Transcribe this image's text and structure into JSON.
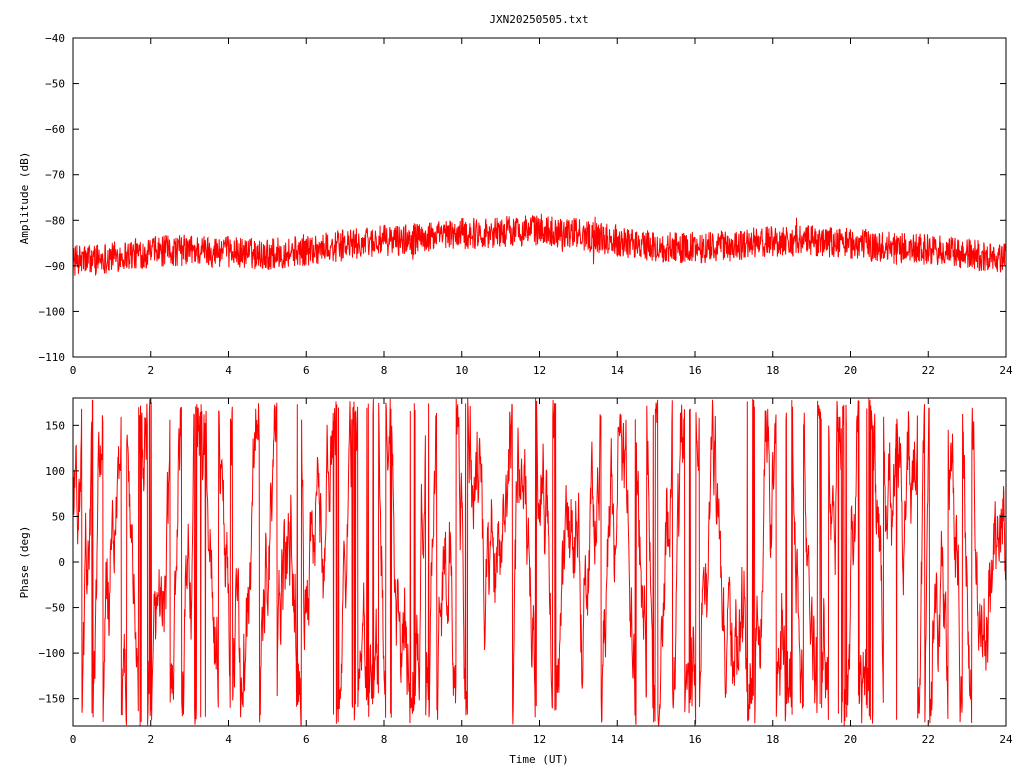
{
  "title": "JXN20250505.txt",
  "chart_data": [
    {
      "type": "line",
      "panel": "amplitude",
      "ylabel": "Amplitude (dB)",
      "xlabel": "",
      "xlim": [
        0,
        24
      ],
      "ylim": [
        -110,
        -40
      ],
      "xticks": [
        0,
        2,
        4,
        6,
        8,
        10,
        12,
        14,
        16,
        18,
        20,
        22,
        24
      ],
      "yticks": [
        -110,
        -100,
        -90,
        -80,
        -70,
        -60,
        -50,
        -40
      ],
      "xtick_labels": [
        "0",
        "2",
        "4",
        "6",
        "8",
        "10",
        "12",
        "14",
        "16",
        "18",
        "20",
        "22",
        "24"
      ],
      "ytick_labels": [
        "−110",
        "−100",
        "−90",
        "−80",
        "−70",
        "−60",
        "−50",
        "−40"
      ],
      "grid": false,
      "color": "#ff0000",
      "series": [
        {
          "x": [
            0,
            1,
            2,
            3,
            4,
            5,
            6,
            7,
            8,
            9,
            10,
            11,
            12,
            13,
            14,
            15,
            16,
            17,
            18,
            19,
            20,
            21,
            22,
            23,
            24
          ],
          "values": [
            -89,
            -88,
            -87,
            -86.5,
            -87,
            -87.5,
            -86.5,
            -85.5,
            -84.5,
            -84,
            -83,
            -82.5,
            -82,
            -83,
            -84.5,
            -86,
            -86,
            -85.5,
            -84.5,
            -84.5,
            -85,
            -86,
            -86.5,
            -87.5,
            -88.5
          ],
          "band": [
            3.5,
            3.5,
            3.5,
            3.5,
            3.5,
            3.5,
            3.5,
            3.5,
            3.5,
            3.5,
            3.5,
            3.5,
            3.5,
            3.5,
            3.5,
            3.5,
            3.5,
            3.5,
            3.5,
            3.5,
            3.5,
            3.5,
            3.5,
            3.5,
            3.5
          ]
        }
      ]
    },
    {
      "type": "line",
      "panel": "phase",
      "ylabel": "Phase (deg)",
      "xlabel": "Time (UT)",
      "xlim": [
        0,
        24
      ],
      "ylim": [
        -180,
        180
      ],
      "xticks": [
        0,
        2,
        4,
        6,
        8,
        10,
        12,
        14,
        16,
        18,
        20,
        22,
        24
      ],
      "yticks": [
        -150,
        -100,
        -50,
        0,
        50,
        100,
        150
      ],
      "xtick_labels": [
        "0",
        "2",
        "4",
        "6",
        "8",
        "10",
        "12",
        "14",
        "16",
        "18",
        "20",
        "22",
        "24"
      ],
      "ytick_labels": [
        "−150",
        "−100",
        "−50",
        "0",
        "50",
        "100",
        "150"
      ],
      "grid": false,
      "color": "#ff0000",
      "series": [
        {
          "wrapped": true,
          "range": [
            -180,
            180
          ]
        }
      ]
    }
  ]
}
